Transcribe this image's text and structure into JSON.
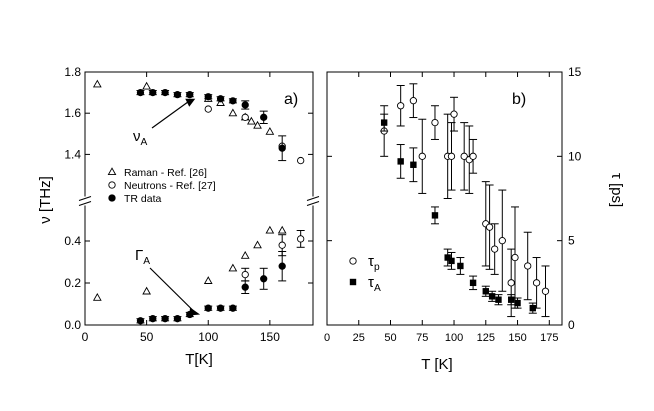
{
  "chart_data": [
    {
      "type": "scatter",
      "panel_label": "a)",
      "xlabel": "T[K]",
      "ylabel": "ν [THz]",
      "xlim": [
        0,
        185
      ],
      "x_ticks": [
        "0",
        "50",
        "100",
        "150"
      ],
      "x_tick_values": [
        0,
        50,
        100,
        150
      ],
      "ylim_upper": [
        1.3,
        1.8
      ],
      "ylim_lower": [
        0.0,
        0.5
      ],
      "y_ticks_upper": [
        "1.4",
        "1.6",
        "1.8"
      ],
      "y_tick_values_upper": [
        1.4,
        1.6,
        1.8
      ],
      "y_ticks_lower": [
        "0.0",
        "0.2",
        "0.4"
      ],
      "y_tick_values_lower": [
        0.0,
        0.2,
        0.4
      ],
      "broken_axis": true,
      "legend_position": "middle-left",
      "annotations": [
        {
          "text": "ν",
          "sub": "A",
          "target": [
            100,
            1.68
          ]
        },
        {
          "text": "Γ",
          "sub": "A",
          "target": [
            95,
            0.05
          ]
        }
      ],
      "series": [
        {
          "name": "Raman - Ref. [26]",
          "marker": "triangle-open",
          "upper": {
            "x": [
              10,
              50,
              100,
              110,
              120,
              130,
              135,
              140,
              150
            ],
            "y": [
              1.74,
              1.73,
              1.67,
              1.65,
              1.6,
              1.58,
              1.56,
              1.54,
              1.51
            ]
          },
          "lower": {
            "x": [
              10,
              50,
              100,
              120,
              130,
              140,
              150,
              160
            ],
            "y": [
              0.13,
              0.16,
              0.21,
              0.27,
              0.33,
              0.38,
              0.45,
              0.45
            ]
          }
        },
        {
          "name": "Neutrons - Ref. [27]",
          "marker": "circle-open",
          "upper": {
            "x": [
              100,
              130,
              160,
              175
            ],
            "y": [
              1.62,
              1.58,
              1.44,
              1.37
            ]
          },
          "lower": {
            "x": [
              130,
              160,
              175
            ],
            "y": [
              0.24,
              0.38,
              0.41
            ],
            "err": [
              0.03,
              0.05,
              0.04
            ]
          }
        },
        {
          "name": "TR data",
          "marker": "circle-filled",
          "upper": {
            "x": [
              45,
              55,
              65,
              75,
              85,
              100,
              110,
              120,
              130,
              145,
              160
            ],
            "y": [
              1.7,
              1.7,
              1.7,
              1.69,
              1.69,
              1.68,
              1.67,
              1.66,
              1.64,
              1.58,
              1.43
            ],
            "err": [
              0.01,
              0.01,
              0.01,
              0.01,
              0.01,
              0.01,
              0.01,
              0.01,
              0.02,
              0.03,
              0.06
            ]
          },
          "lower": {
            "x": [
              45,
              55,
              65,
              75,
              85,
              100,
              110,
              120,
              130,
              145,
              160
            ],
            "y": [
              0.02,
              0.03,
              0.03,
              0.03,
              0.05,
              0.08,
              0.08,
              0.08,
              0.18,
              0.22,
              0.28
            ],
            "err": [
              0.01,
              0.01,
              0.01,
              0.01,
              0.01,
              0.01,
              0.01,
              0.01,
              0.03,
              0.05,
              0.07
            ]
          }
        }
      ]
    },
    {
      "type": "scatter",
      "panel_label": "b)",
      "xlabel": "T [K]",
      "ylabel": "τ [ps]",
      "xlim": [
        0,
        185
      ],
      "ylim": [
        0,
        15
      ],
      "x_ticks": [
        "0",
        "25",
        "50",
        "75",
        "100",
        "125",
        "150",
        "175"
      ],
      "x_tick_values": [
        0,
        25,
        50,
        75,
        100,
        125,
        150,
        175
      ],
      "y_ticks": [
        "0",
        "5",
        "10",
        "15"
      ],
      "y_tick_values": [
        0,
        5,
        10,
        15
      ],
      "y_axis_side": "right",
      "legend_position": "bottom-left",
      "series": [
        {
          "name": "τ",
          "sub": "p",
          "marker": "circle-open",
          "x": [
            45,
            58,
            68,
            75,
            85,
            95,
            98,
            100,
            108,
            112,
            115,
            125,
            128,
            132,
            138,
            145,
            148,
            158,
            165,
            172
          ],
          "y": [
            11.5,
            13.0,
            13.3,
            10.0,
            12.0,
            10.0,
            10.0,
            12.5,
            10.0,
            9.8,
            10.0,
            6.0,
            5.8,
            4.5,
            5.0,
            2.5,
            4.0,
            3.5,
            2.5,
            2.0
          ],
          "err": [
            1.5,
            1.2,
            1.0,
            2.2,
            1.0,
            2.5,
            2.0,
            1.0,
            2.0,
            2.0,
            1.0,
            2.5,
            2.5,
            1.5,
            3.0,
            2.0,
            3.0,
            2.0,
            1.5,
            1.5
          ]
        },
        {
          "name": "τ",
          "sub": "A",
          "marker": "square-filled",
          "x": [
            45,
            58,
            68,
            85,
            95,
            98,
            105,
            115,
            125,
            130,
            135,
            145,
            150,
            162
          ],
          "y": [
            12.0,
            9.7,
            9.5,
            6.5,
            4.0,
            3.8,
            3.5,
            2.5,
            2.0,
            1.7,
            1.5,
            1.5,
            1.3,
            1.0
          ],
          "err": [
            0.5,
            1.0,
            1.0,
            0.5,
            0.5,
            0.5,
            0.5,
            0.4,
            0.3,
            0.3,
            0.3,
            0.3,
            0.3,
            0.3
          ]
        }
      ]
    }
  ]
}
